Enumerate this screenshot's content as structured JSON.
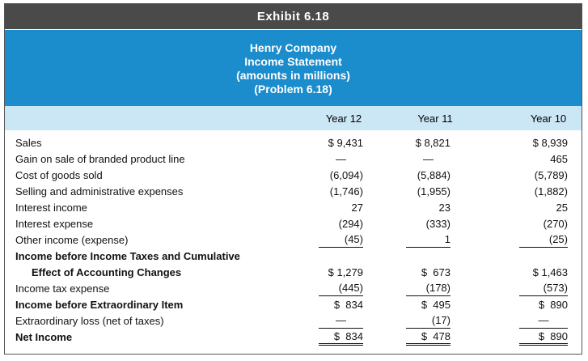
{
  "header": {
    "exhibit": "Exhibit 6.18",
    "title_lines": [
      "Henry Company",
      "Income Statement",
      "(amounts in millions)",
      "(Problem 6.18)"
    ]
  },
  "table": {
    "columns": [
      "Year 12",
      "Year 11",
      "Year 10"
    ],
    "rows": [
      {
        "label": "Sales",
        "cells": [
          "$ 9,431",
          "$ 8,821",
          "$ 8,939"
        ]
      },
      {
        "label": "Gain on sale of branded product line",
        "cells": [
          "—",
          "—",
          "465"
        ]
      },
      {
        "label": "Cost of goods sold",
        "cells": [
          "(6,094)",
          "(5,884)",
          "(5,789)"
        ]
      },
      {
        "label": "Selling and administrative expenses",
        "cells": [
          "(1,746)",
          "(1,955)",
          "(1,882)"
        ]
      },
      {
        "label": "Interest income",
        "cells": [
          "27",
          "23",
          "25"
        ]
      },
      {
        "label": "Interest expense",
        "cells": [
          "(294)",
          "(333)",
          "(270)"
        ]
      },
      {
        "label": "Other income (expense)",
        "cells": [
          "(45)",
          "1",
          "(25)"
        ]
      },
      {
        "label": "Income before Income Taxes and Cumulative"
      },
      {
        "label": "Effect of Accounting Changes",
        "cells": [
          "$ 1,279",
          "$  673",
          "$ 1,463"
        ]
      },
      {
        "label": "Income tax expense",
        "cells": [
          "(445)",
          "(178)",
          "(573)"
        ]
      },
      {
        "label": "Income before Extraordinary Item",
        "cells": [
          "$  834",
          "$  495",
          "$  890"
        ]
      },
      {
        "label": "Extraordinary loss (net of taxes)",
        "cells": [
          "—",
          "(17)",
          "—"
        ]
      },
      {
        "label": "Net Income",
        "cells": [
          "$  834",
          "$  478",
          "$  890"
        ]
      }
    ]
  }
}
